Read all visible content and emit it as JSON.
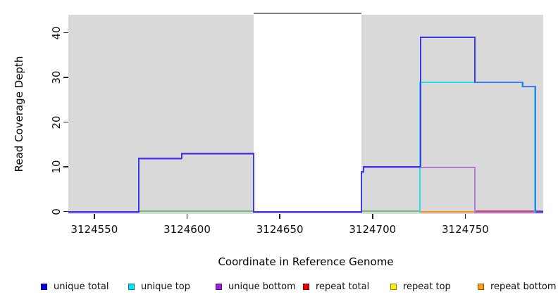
{
  "chart_data": {
    "type": "line",
    "subtype": "step-coverage-plot",
    "xlabel": "Coordinate in Reference Genome",
    "ylabel": "Read Coverage Depth",
    "xlim": [
      3124536,
      3124792
    ],
    "ylim": [
      0,
      44
    ],
    "x_ticks": [
      3124550,
      3124600,
      3124650,
      3124700,
      3124750
    ],
    "y_ticks": [
      0,
      10,
      20,
      30,
      40
    ],
    "grid": false,
    "legend_position": "bottom",
    "background_regions": [
      {
        "x1": 3124536,
        "x2": 3124636,
        "fill": "#D9D9D9"
      },
      {
        "x1": 3124694,
        "x2": 3124792,
        "fill": "#D9D9D9"
      }
    ],
    "masked_region": {
      "x1": 3124636,
      "x2": 3124694,
      "fill": "#FFFFFF",
      "top_border": "#7E7E7E"
    },
    "series": [
      {
        "name": "unique total",
        "key": "unique_total",
        "render": true,
        "vertices": [
          [
            3124536,
            0
          ],
          [
            3124574,
            0
          ],
          [
            3124574,
            12
          ],
          [
            3124597,
            12
          ],
          [
            3124597,
            13
          ],
          [
            3124636,
            13
          ],
          [
            3124636,
            0
          ],
          [
            3124694,
            0
          ],
          [
            3124694,
            9
          ],
          [
            3124695,
            9
          ],
          [
            3124695,
            10
          ],
          [
            3124726,
            10
          ],
          [
            3124726,
            39
          ],
          [
            3124755,
            39
          ],
          [
            3124755,
            29
          ],
          [
            3124781,
            29
          ],
          [
            3124781,
            28
          ],
          [
            3124788,
            28
          ],
          [
            3124788,
            0
          ],
          [
            3124792,
            0
          ]
        ]
      },
      {
        "name": "unique top",
        "key": "unique_top",
        "render": true,
        "vertices": [
          [
            3124726,
            0
          ],
          [
            3124726,
            29
          ],
          [
            3124755,
            29
          ],
          [
            3124781,
            29
          ],
          [
            3124781,
            28
          ],
          [
            3124788,
            28
          ],
          [
            3124788,
            0
          ]
        ]
      },
      {
        "name": "unique bottom",
        "key": "unique_bottom",
        "render": true,
        "vertices": [
          [
            3124536,
            0
          ],
          [
            3124574,
            0
          ],
          [
            3124574,
            12
          ],
          [
            3124597,
            12
          ],
          [
            3124597,
            13
          ],
          [
            3124636,
            13
          ],
          [
            3124636,
            0
          ],
          [
            3124694,
            0
          ],
          [
            3124694,
            9
          ],
          [
            3124695,
            9
          ],
          [
            3124695,
            10
          ],
          [
            3124755,
            10
          ],
          [
            3124755,
            0
          ],
          [
            3124792,
            0
          ]
        ]
      },
      {
        "name": "repeat total",
        "key": "repeat_total",
        "render": false,
        "vertices": [
          [
            3124536,
            0
          ],
          [
            3124792,
            0
          ]
        ]
      },
      {
        "name": "repeat top",
        "key": "repeat_top",
        "render": false,
        "vertices": [
          [
            3124536,
            0
          ],
          [
            3124792,
            0
          ]
        ]
      },
      {
        "name": "repeat bottom",
        "key": "repeat_bottom",
        "render": false,
        "vertices": [
          [
            3124536,
            0
          ],
          [
            3124792,
            0
          ]
        ]
      }
    ],
    "zero_line_segments": [
      {
        "x1": 3124574,
        "x2": 3124636,
        "color_key": "zero_green",
        "dy": -1
      },
      {
        "x1": 3124694,
        "x2": 3124726,
        "color_key": "zero_green",
        "dy": -1
      },
      {
        "x1": 3124726,
        "x2": 3124755,
        "color_key": "zero_orange",
        "dy": 0.5
      },
      {
        "x1": 3124755,
        "x2": 3124792,
        "color_key": "zero_crimson",
        "dy": -1
      }
    ],
    "blend_segments": [
      [
        3124755,
        29,
        3124781,
        29
      ],
      [
        3124781,
        29,
        3124781,
        28
      ],
      [
        3124781,
        28,
        3124788,
        28
      ],
      [
        3124788,
        28,
        3124788,
        0
      ]
    ],
    "colors": {
      "background": "#D9D9D9",
      "mask_border": "#7E7E7E",
      "unique_total": "#3B3BEC",
      "unique_top": "#2BDFE8",
      "unique_bottom": "#B678DC",
      "blend": "#3D7CF2",
      "zero_green": "#6EC06E",
      "zero_orange": "#FF8C1A",
      "zero_crimson": "#D14A6E",
      "tick": "#222222"
    },
    "legend": [
      {
        "label": "unique total",
        "color": "#0000EE"
      },
      {
        "label": "unique top",
        "color": "#00E5EE"
      },
      {
        "label": "unique bottom",
        "color": "#9A1FD8"
      },
      {
        "label": "repeat total",
        "color": "#EE0000"
      },
      {
        "label": "repeat top",
        "color": "#FFEE00"
      },
      {
        "label": "repeat bottom",
        "color": "#FFA010"
      }
    ]
  }
}
